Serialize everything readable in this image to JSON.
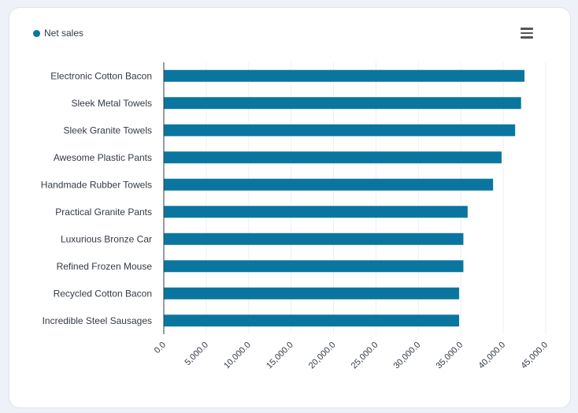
{
  "legend": {
    "label": "Net sales",
    "color": "#0a76a0"
  },
  "menu": {
    "icon": "hamburger-menu-icon"
  },
  "chart_data": {
    "type": "bar",
    "orientation": "horizontal",
    "categories": [
      "Electronic Cotton Bacon",
      "Sleek Metal Towels",
      "Sleek Granite Towels",
      "Awesome Plastic Pants",
      "Handmade Rubber Towels",
      "Practical Granite Pants",
      "Luxurious Bronze Car",
      "Refined Frozen Mouse",
      "Recycled Cotton Bacon",
      "Incredible Steel Sausages"
    ],
    "series": [
      {
        "name": "Net sales",
        "color": "#0a76a0",
        "values": [
          42500,
          42100,
          41400,
          39800,
          38800,
          35800,
          35300,
          35300,
          34800,
          34800
        ]
      }
    ],
    "xlim": [
      0,
      45000
    ],
    "xticks": [
      "0.0",
      "5,000.0",
      "10,000.0",
      "15,000.0",
      "20,000.0",
      "25,000.0",
      "30,000.0",
      "35,000.0",
      "40,000.0",
      "45,000.0"
    ],
    "xtick_values": [
      0,
      5000,
      10000,
      15000,
      20000,
      25000,
      30000,
      35000,
      40000,
      45000
    ],
    "grid": true,
    "legend_position": "top-left"
  }
}
